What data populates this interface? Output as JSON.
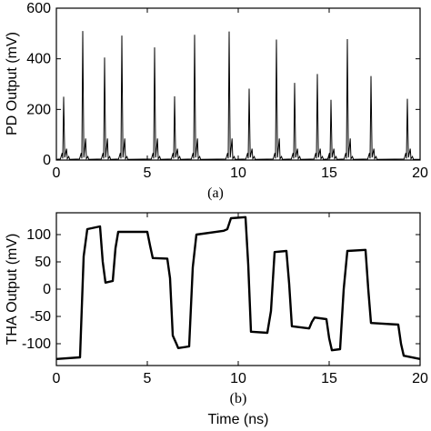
{
  "chart_data": [
    {
      "type": "line",
      "caption": "(a)",
      "ylabel": "PD Output (mV)",
      "xlabel": "",
      "xlim": [
        0,
        20
      ],
      "ylim": [
        0,
        600
      ],
      "xticks": [
        "0",
        "5",
        "10",
        "15",
        "20"
      ],
      "yticks": [
        "0",
        "200",
        "400",
        "600"
      ],
      "grid": false,
      "series": [
        {
          "peaks": [
            {
              "x": 0.4,
              "y": 250
            },
            {
              "x": 1.45,
              "y": 510
            },
            {
              "x": 2.65,
              "y": 405
            },
            {
              "x": 3.6,
              "y": 492
            },
            {
              "x": 5.4,
              "y": 445
            },
            {
              "x": 6.5,
              "y": 252
            },
            {
              "x": 7.6,
              "y": 495
            },
            {
              "x": 9.5,
              "y": 508
            },
            {
              "x": 10.6,
              "y": 282
            },
            {
              "x": 12.1,
              "y": 476
            },
            {
              "x": 13.1,
              "y": 305
            },
            {
              "x": 14.35,
              "y": 340
            },
            {
              "x": 15.1,
              "y": 238
            },
            {
              "x": 16.0,
              "y": 478
            },
            {
              "x": 17.3,
              "y": 332
            },
            {
              "x": 19.3,
              "y": 242
            }
          ]
        }
      ]
    },
    {
      "type": "line",
      "caption": "(b)",
      "ylabel": "THA Output (mV)",
      "xlabel": "Time (ns)",
      "xlim": [
        0,
        20
      ],
      "ylim": [
        -140,
        140
      ],
      "xticks": [
        "0",
        "5",
        "10",
        "15",
        "20"
      ],
      "yticks": [
        "100",
        "50",
        "0",
        "-50",
        "-100"
      ],
      "grid": false,
      "series": [
        {
          "x": [
            0.0,
            1.3,
            1.5,
            1.7,
            2.4,
            2.55,
            2.7,
            3.1,
            3.25,
            3.4,
            5.0,
            5.15,
            5.3,
            6.1,
            6.25,
            6.4,
            6.6,
            6.7,
            7.3,
            7.5,
            7.7,
            9.2,
            9.4,
            9.6,
            10.4,
            10.55,
            10.7,
            11.6,
            11.8,
            12.0,
            12.65,
            12.8,
            12.95,
            13.9,
            14.05,
            14.2,
            14.85,
            15.0,
            15.15,
            15.6,
            15.8,
            16.0,
            17.0,
            17.15,
            17.3,
            18.8,
            18.95,
            19.1,
            20.0
          ],
          "y": [
            -128,
            -125,
            60,
            110,
            115,
            50,
            12,
            15,
            75,
            105,
            105,
            80,
            57,
            56,
            20,
            -85,
            -100,
            -108,
            -105,
            40,
            100,
            107,
            110,
            130,
            132,
            45,
            -78,
            -80,
            -40,
            68,
            70,
            10,
            -68,
            -72,
            -60,
            -52,
            -55,
            -90,
            -112,
            -110,
            0,
            70,
            72,
            0,
            -62,
            -65,
            -100,
            -122,
            -128
          ]
        }
      ]
    }
  ]
}
